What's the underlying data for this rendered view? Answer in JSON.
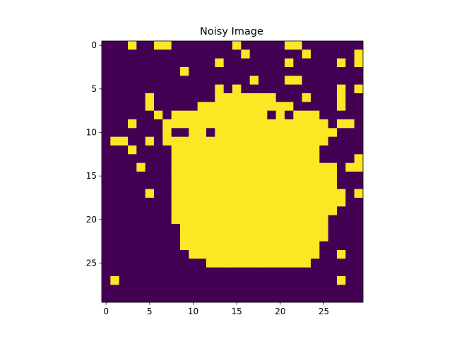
{
  "chart_data": {
    "type": "heatmap",
    "title": "Noisy Image",
    "xlabel": "",
    "ylabel": "",
    "colors": {
      "low": "#440154",
      "high": "#fde725",
      "axes": "#000000",
      "background": "#ffffff"
    },
    "rows": 30,
    "cols": 30,
    "xlim": [
      -0.5,
      29.5
    ],
    "ylim": [
      29.5,
      -0.5
    ],
    "grid": false,
    "xticks": [
      {
        "value": 0,
        "label": "0"
      },
      {
        "value": 5,
        "label": "5"
      },
      {
        "value": 10,
        "label": "10"
      },
      {
        "value": 15,
        "label": "15"
      },
      {
        "value": 20,
        "label": "20"
      },
      {
        "value": 25,
        "label": "25"
      }
    ],
    "yticks": [
      {
        "value": 0,
        "label": "0"
      },
      {
        "value": 5,
        "label": "5"
      },
      {
        "value": 10,
        "label": "10"
      },
      {
        "value": 15,
        "label": "15"
      },
      {
        "value": 20,
        "label": "20"
      },
      {
        "value": 25,
        "label": "25"
      }
    ],
    "matrix": [
      "000100110000000100000110000000",
      "000000000000000010000001000001",
      "000000000000010000000100000101",
      "000000000100000000000000000000",
      "000000000000000001000110000000",
      "000000000000010100000000000101",
      "000001000000011111110001000100",
      "000001000001111111111100000100",
      "000000101111111111101011100000",
      "000100011111111111111111110110",
      "000000010011011111111111111000",
      "011001011111111111111111110000",
      "000100001111111111111111100000",
      "000000001111111111111111100001",
      "000010001111111111111111111011",
      "000000001111111111111111111000",
      "000000001111111111111111111000",
      "000001001111111111111111111101",
      "000000001111111111111111111100",
      "000000001111111111111111111000",
      "000000001111111111111111110000",
      "000000000111111111111111110000",
      "000000000111111111111111110000",
      "000000000111111111111111100000",
      "000000000011111111111111100100",
      "000000000000111111111111000000",
      "000000000000000000000000000000",
      "010000000000000000000000000100",
      "000000000000000000000000000000",
      "000000000000000000000000000000"
    ]
  }
}
